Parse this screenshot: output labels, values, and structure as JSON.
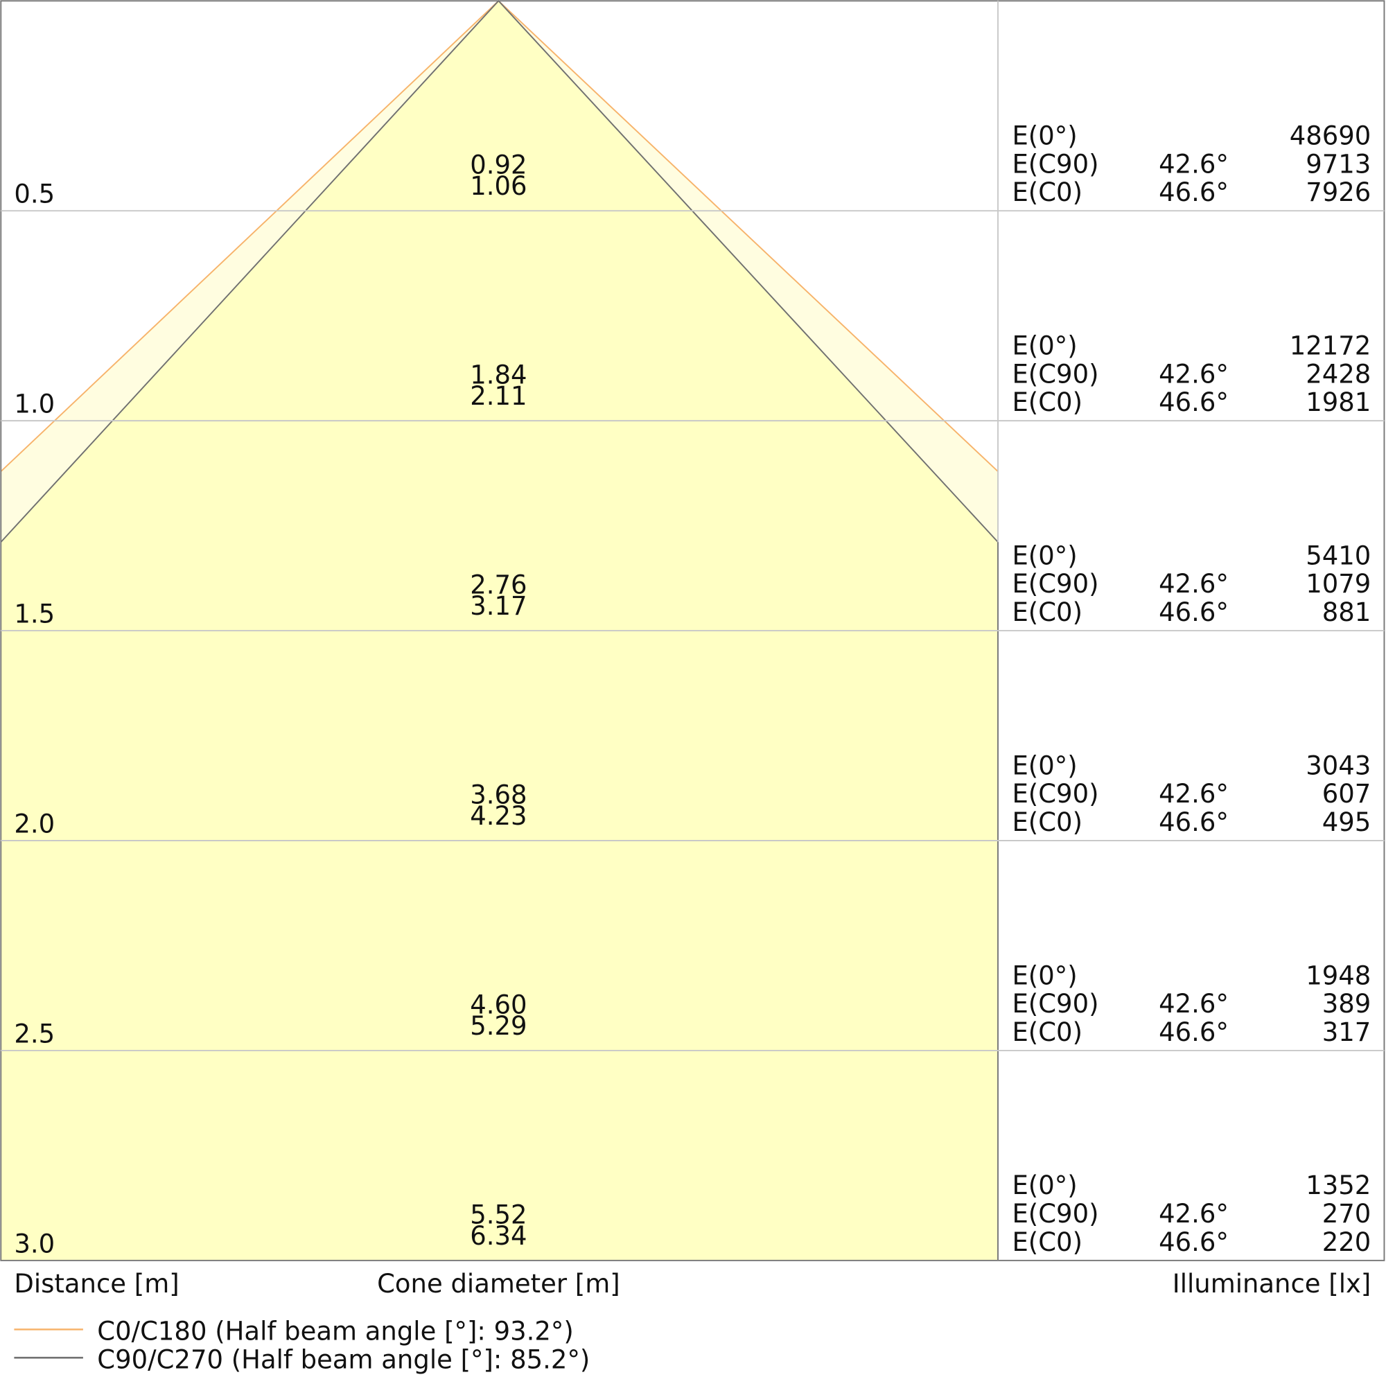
{
  "chart_data": {
    "type": "cone diagram",
    "xlabel_left": "Distance [m]",
    "xlabel_center": "Cone diameter [m]",
    "xlabel_right": "Illuminance [lx]",
    "distance_range": [
      0,
      3.0
    ],
    "grid": true,
    "colors": {
      "fill": "#ffffc4",
      "fill_outer": "#fffde0",
      "c0": "#f7b36b",
      "c90": "#707070",
      "grid": "#c8c8c8",
      "border": "#777777"
    },
    "series": [
      {
        "name": "C0/C180 (Half beam angle [°]: 93.2°)",
        "half_beam_angle": 93.2,
        "color": "#f7b36b"
      },
      {
        "name": "C90/C270 (Half beam angle [°]: 85.2°)",
        "half_beam_angle": 85.2,
        "color": "#707070"
      }
    ],
    "rows": [
      {
        "distance": "0.5",
        "d": 0.5,
        "cone_c90": "0.92",
        "cone_c0": "1.06",
        "e0": "48690",
        "ec90": "9713",
        "ec0": "7926"
      },
      {
        "distance": "1.0",
        "d": 1.0,
        "cone_c90": "1.84",
        "cone_c0": "2.11",
        "e0": "12172",
        "ec90": "2428",
        "ec0": "1981"
      },
      {
        "distance": "1.5",
        "d": 1.5,
        "cone_c90": "2.76",
        "cone_c0": "3.17",
        "e0": "5410",
        "ec90": "1079",
        "ec0": "881"
      },
      {
        "distance": "2.0",
        "d": 2.0,
        "cone_c90": "3.68",
        "cone_c0": "4.23",
        "e0": "3043",
        "ec90": "607",
        "ec0": "495"
      },
      {
        "distance": "2.5",
        "d": 2.5,
        "cone_c90": "4.60",
        "cone_c0": "5.29",
        "e0": "1948",
        "ec90": "389",
        "ec0": "317"
      },
      {
        "distance": "3.0",
        "d": 3.0,
        "cone_c90": "5.52",
        "cone_c0": "6.34",
        "e0": "1352",
        "ec90": "270",
        "ec0": "220"
      }
    ],
    "row_labels": {
      "e0": "E(0°)",
      "ec90": "E(C90)",
      "ec0": "E(C0)",
      "angle_c90": "42.6°",
      "angle_c0": "46.6°"
    }
  }
}
